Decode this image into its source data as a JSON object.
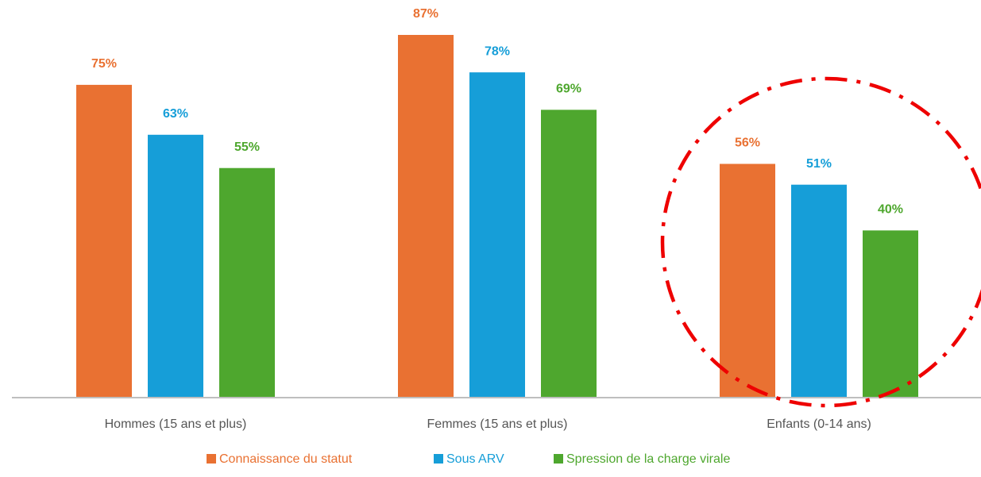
{
  "chart_data": {
    "type": "bar",
    "categories": [
      "Hommes (15 ans et plus)",
      "Femmes (15 ans et plus)",
      "Enfants (0-14 ans)"
    ],
    "series": [
      {
        "name": "Connaissance du statut",
        "color": "#e97132",
        "values": [
          75,
          87,
          56
        ],
        "value_labels": [
          "75%",
          "87%",
          "56%"
        ]
      },
      {
        "name": "Sous ARV",
        "color": "#169ed8",
        "values": [
          63,
          78,
          51
        ],
        "value_labels": [
          "63%",
          "78%",
          "51%"
        ]
      },
      {
        "name": "Spression de la charge virale",
        "color": "#4ea72e",
        "values": [
          55,
          69,
          40
        ],
        "value_labels": [
          "55%",
          "69%",
          "40%"
        ]
      }
    ]
  }
}
